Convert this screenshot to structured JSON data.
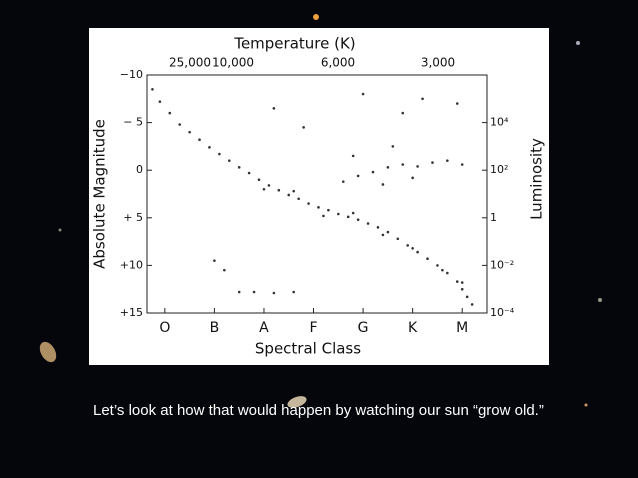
{
  "slide": {
    "caption": "Let’s look at how that would happen by watching our sun “grow old.”"
  },
  "chart_data": {
    "type": "scatter",
    "x_title": "Spectral Class",
    "y_title": "Absolute Magnitude",
    "y2_title": "Luminosity",
    "top_title": "Temperature (K)",
    "top_labels": [
      "25,000",
      "10,000",
      "6,000",
      "3,000"
    ],
    "xlim": [
      -0.36,
      6.5
    ],
    "xticks": [
      {
        "value": 0,
        "label": "O"
      },
      {
        "value": 1,
        "label": "B"
      },
      {
        "value": 2,
        "label": "A"
      },
      {
        "value": 3,
        "label": "F"
      },
      {
        "value": 4,
        "label": "G"
      },
      {
        "value": 5,
        "label": "K"
      },
      {
        "value": 6,
        "label": "M"
      }
    ],
    "ylim": [
      15,
      -10
    ],
    "yticks": [
      {
        "value": -10,
        "label": "−10"
      },
      {
        "value": -5,
        "label": "− 5"
      },
      0,
      {
        "value": 5,
        "label": "+ 5"
      },
      {
        "value": 10,
        "label": "+10"
      },
      {
        "value": 15,
        "label": "+15"
      }
    ],
    "y2_log": true,
    "y2lim": [
      0.0001,
      1000000
    ],
    "y2ticks": [
      {
        "value": 10000,
        "label": "10⁴"
      },
      {
        "value": 100,
        "label": "10²"
      },
      1,
      {
        "value": 0.01,
        "label": "10⁻²"
      },
      {
        "value": 0.0001,
        "label": "10⁻⁴"
      }
    ],
    "color": "#333333",
    "series": [
      {
        "x": [
          -0.25,
          -0.1,
          0.1,
          0.3,
          0.5,
          0.7,
          0.9,
          1.1,
          1.3,
          1.5,
          1.7,
          1.9,
          2.1,
          2.3,
          2.5,
          2.7,
          2.9,
          3.1,
          3.3,
          3.5,
          3.7,
          3.9,
          4.1,
          4.3,
          4.5,
          4.7,
          4.9,
          5.1,
          5.3,
          5.5,
          5.7,
          5.9,
          6.0,
          6.1,
          6.2,
          2.0,
          2.6,
          3.2,
          3.8,
          4.4,
          5.0,
          5.6,
          6.0,
          3.6,
          3.9,
          4.2,
          4.5,
          4.8,
          5.1,
          5.4,
          5.7,
          6.0,
          4.4,
          5.0,
          3.8,
          4.6,
          2.2,
          4.0,
          4.8,
          5.2,
          5.9,
          2.8,
          1.2,
          1.5,
          1.8,
          2.2,
          2.6,
          1.0
        ],
        "values": [
          -8.5,
          -7.2,
          -6,
          -4.8,
          -4,
          -3.2,
          -2.4,
          -1.7,
          -1,
          -0.3,
          0.3,
          1,
          1.6,
          2.1,
          2.6,
          3,
          3.5,
          3.9,
          4.2,
          4.6,
          4.9,
          5.2,
          5.6,
          6,
          6.5,
          7.2,
          7.9,
          8.6,
          9.3,
          10,
          10.8,
          11.7,
          12.5,
          13.3,
          14.1,
          2,
          2.2,
          4.8,
          4.5,
          6.8,
          8.2,
          10.5,
          11.8,
          1.2,
          0.6,
          0.2,
          -0.3,
          -0.6,
          -0.4,
          -0.8,
          -1,
          -0.6,
          1.5,
          0.8,
          -1.5,
          -2.5,
          -6.5,
          -8,
          -6,
          -7.5,
          -7,
          -4.5,
          10.5,
          12.8,
          12.8,
          12.9,
          12.8,
          9.5
        ]
      }
    ]
  }
}
